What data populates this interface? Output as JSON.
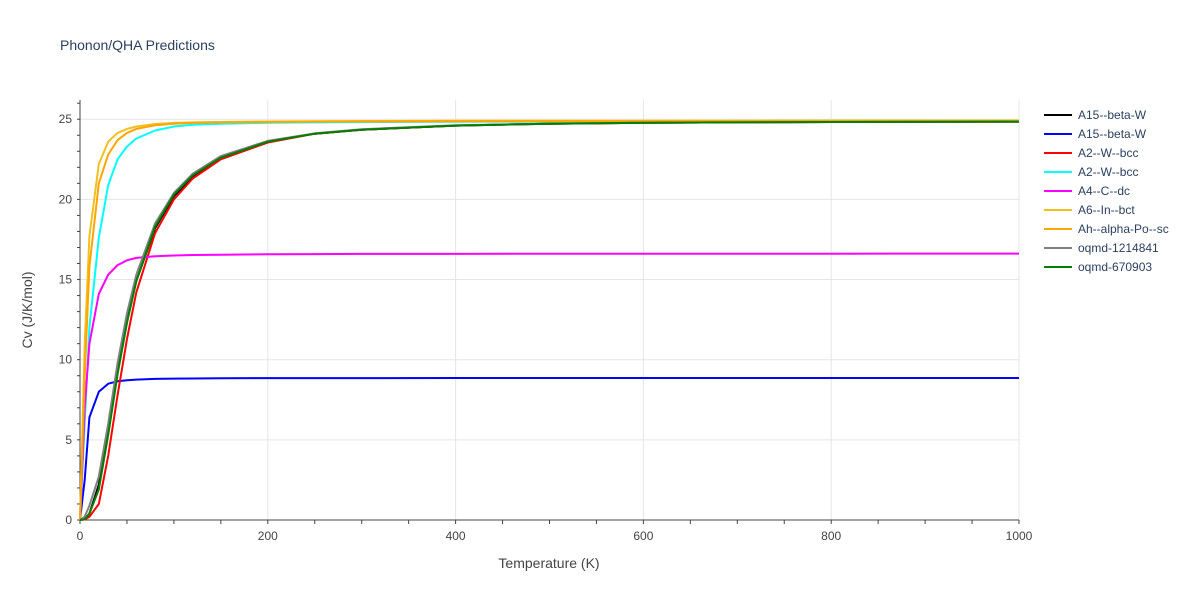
{
  "chart_data": {
    "type": "line",
    "title": "Phonon/QHA Predictions",
    "xlabel": "Temperature (K)",
    "ylabel": "Cv (J/K/mol)",
    "xlim": [
      0,
      1000
    ],
    "ylim": [
      0,
      26.2
    ],
    "x_ticks": [
      0,
      200,
      400,
      600,
      800,
      1000
    ],
    "y_ticks": [
      0,
      5,
      10,
      15,
      20,
      25
    ],
    "grid": true,
    "legend_position": "right",
    "x": [
      0,
      5,
      10,
      20,
      30,
      40,
      50,
      60,
      80,
      100,
      120,
      150,
      200,
      250,
      300,
      400,
      500,
      600,
      800,
      1000
    ],
    "series": [
      {
        "name": "A15--beta-W",
        "color": "#000000",
        "values": [
          0,
          0.05,
          0.4,
          2.2,
          5.6,
          9.3,
          12.4,
          14.9,
          18.2,
          20.2,
          21.4,
          22.6,
          23.6,
          24.1,
          24.35,
          24.6,
          24.72,
          24.78,
          24.83,
          24.85
        ]
      },
      {
        "name": "A15--beta-W",
        "color": "#0000ff",
        "values": [
          0,
          2.5,
          6.4,
          8.0,
          8.5,
          8.65,
          8.72,
          8.76,
          8.8,
          8.82,
          8.83,
          8.84,
          8.85,
          8.85,
          8.85,
          8.86,
          8.86,
          8.86,
          8.86,
          8.86
        ]
      },
      {
        "name": "A2--W--bcc",
        "color": "#ff0000",
        "values": [
          0,
          0.03,
          0.2,
          1.0,
          4.0,
          7.8,
          11.3,
          14.2,
          17.9,
          20.0,
          21.3,
          22.5,
          23.55,
          24.1,
          24.35,
          24.6,
          24.72,
          24.78,
          24.83,
          24.85
        ]
      },
      {
        "name": "A2--W--bcc",
        "color": "#00ffff",
        "values": [
          0,
          6.0,
          12.0,
          17.6,
          20.9,
          22.5,
          23.3,
          23.8,
          24.3,
          24.55,
          24.65,
          24.72,
          24.78,
          24.8,
          24.82,
          24.84,
          24.85,
          24.86,
          24.86,
          24.87
        ]
      },
      {
        "name": "A4--C--dc",
        "color": "#ff00ff",
        "values": [
          0,
          7.0,
          11.0,
          14.1,
          15.3,
          15.9,
          16.2,
          16.35,
          16.45,
          16.5,
          16.53,
          16.55,
          16.58,
          16.59,
          16.6,
          16.6,
          16.61,
          16.61,
          16.61,
          16.62
        ]
      },
      {
        "name": "A6--In--bct",
        "color": "#f0c020",
        "values": [
          0,
          11.0,
          17.7,
          22.2,
          23.6,
          24.15,
          24.4,
          24.55,
          24.7,
          24.77,
          24.8,
          24.83,
          24.86,
          24.88,
          24.89,
          24.9,
          24.91,
          24.91,
          24.92,
          24.92
        ]
      },
      {
        "name": "Ah--alpha-Po--sc",
        "color": "#ffa500",
        "values": [
          0,
          9.0,
          15.8,
          21.0,
          22.8,
          23.7,
          24.15,
          24.4,
          24.62,
          24.72,
          24.77,
          24.8,
          24.83,
          24.85,
          24.86,
          24.87,
          24.88,
          24.88,
          24.89,
          24.89
        ]
      },
      {
        "name": "oqmd-1214841",
        "color": "#808080",
        "values": [
          0,
          0.2,
          0.9,
          2.7,
          6.0,
          9.8,
          12.9,
          15.3,
          18.5,
          20.4,
          21.6,
          22.7,
          23.65,
          24.12,
          24.38,
          24.62,
          24.73,
          24.79,
          24.83,
          24.85
        ]
      },
      {
        "name": "oqmd-670903",
        "color": "#008000",
        "values": [
          0,
          0.05,
          0.4,
          1.9,
          5.3,
          9.1,
          12.3,
          14.9,
          18.3,
          20.3,
          21.5,
          22.6,
          23.6,
          24.1,
          24.35,
          24.6,
          24.72,
          24.78,
          24.83,
          24.85
        ]
      }
    ]
  }
}
